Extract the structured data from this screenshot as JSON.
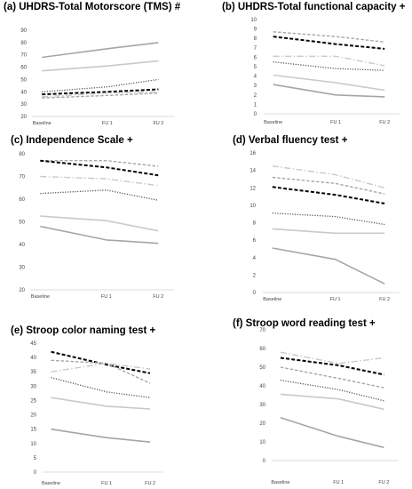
{
  "line_styles": {
    "s1": {
      "color": "#a6a6a6",
      "dash": "",
      "width": 1.6
    },
    "s2": {
      "color": "#c9c9c9",
      "dash": "",
      "width": 1.6
    },
    "s3": {
      "color": "#555555",
      "dash": "1.2,1.6",
      "width": 1.3
    },
    "s4": {
      "color": "#000000",
      "dash": "4,2.2",
      "width": 2.0
    },
    "s5": {
      "color": "#c9c9c9",
      "dash": "7,2.5,1.5,2.5",
      "width": 1.4
    },
    "s6": {
      "color": "#a6a6a6",
      "dash": "3.5,2",
      "width": 1.4
    }
  },
  "chart_data": [
    {
      "type": "line",
      "title": "(a) UHDRS-Total Motorscore (TMS) #",
      "categories": [
        "Baseline",
        "FU 1",
        "FU 2"
      ],
      "ylim": [
        20,
        90
      ],
      "yticks": [
        20,
        30,
        40,
        50,
        60,
        70,
        80,
        90
      ],
      "grid": false,
      "series": [
        {
          "style": "s1",
          "values": [
            68,
            75,
            80
          ]
        },
        {
          "style": "s2",
          "values": [
            57,
            61,
            65
          ]
        },
        {
          "style": "s3",
          "values": [
            40,
            44,
            50
          ]
        },
        {
          "style": "s4",
          "values": [
            38,
            40,
            42
          ]
        },
        {
          "style": "s5",
          "values": [
            36,
            39,
            40
          ]
        },
        {
          "style": "s6",
          "values": [
            35,
            37,
            39
          ]
        }
      ]
    },
    {
      "type": "line",
      "title": "(b) UHDRS-Total functional capacity +",
      "categories": [
        "Baseline",
        "FU 1",
        "FU 2"
      ],
      "ylim": [
        0,
        10
      ],
      "yticks": [
        0,
        1,
        2,
        3,
        4,
        5,
        6,
        7,
        8,
        9,
        10
      ],
      "grid": false,
      "series": [
        {
          "style": "s6",
          "values": [
            8.7,
            8.2,
            7.6
          ]
        },
        {
          "style": "s4",
          "values": [
            8.2,
            7.4,
            6.9
          ]
        },
        {
          "style": "s5",
          "values": [
            6.1,
            6.1,
            5.1
          ]
        },
        {
          "style": "s3",
          "values": [
            5.5,
            4.8,
            4.6
          ]
        },
        {
          "style": "s2",
          "values": [
            4.1,
            3.3,
            2.5
          ]
        },
        {
          "style": "s1",
          "values": [
            3.1,
            2.0,
            1.8
          ]
        }
      ]
    },
    {
      "type": "line",
      "title": "(c) Independence Scale +",
      "categories": [
        "Baseline",
        "FU 1",
        "FU 2"
      ],
      "ylim": [
        20,
        80
      ],
      "yticks": [
        20,
        30,
        40,
        50,
        60,
        70,
        80
      ],
      "grid": false,
      "series": [
        {
          "style": "s6",
          "values": [
            77,
            77,
            74.5
          ]
        },
        {
          "style": "s4",
          "values": [
            77,
            74,
            70.5
          ]
        },
        {
          "style": "s5",
          "values": [
            70,
            69,
            66
          ]
        },
        {
          "style": "s3",
          "values": [
            62.5,
            64,
            59.5
          ]
        },
        {
          "style": "s2",
          "values": [
            52.5,
            50.5,
            46
          ]
        },
        {
          "style": "s1",
          "values": [
            48,
            42,
            40.5
          ]
        }
      ]
    },
    {
      "type": "line",
      "title": "(d) Verbal fluency test +",
      "categories": [
        "Baseline",
        "FU 1",
        "FU 2"
      ],
      "ylim": [
        0,
        16
      ],
      "yticks": [
        0,
        2,
        4,
        6,
        8,
        10,
        12,
        14,
        16
      ],
      "grid": false,
      "series": [
        {
          "style": "s5",
          "values": [
            14.5,
            13.5,
            12
          ]
        },
        {
          "style": "s6",
          "values": [
            13.2,
            12.5,
            11.3
          ]
        },
        {
          "style": "s4",
          "values": [
            12.1,
            11.2,
            10.2
          ]
        },
        {
          "style": "s3",
          "values": [
            9.1,
            8.7,
            7.8
          ]
        },
        {
          "style": "s2",
          "values": [
            7.3,
            6.8,
            6.8
          ]
        },
        {
          "style": "s1",
          "values": [
            5.1,
            3.8,
            1.0
          ]
        }
      ]
    },
    {
      "type": "line",
      "title": "(e) Stroop color naming test +",
      "categories": [
        "Baseline",
        "FU 1",
        "FU 2"
      ],
      "ylim": [
        0,
        45
      ],
      "yticks": [
        0,
        5,
        10,
        15,
        20,
        25,
        30,
        35,
        40,
        45
      ],
      "grid": false,
      "series": [
        {
          "style": "s4",
          "values": [
            42,
            37.5,
            34.5
          ]
        },
        {
          "style": "s6",
          "values": [
            39,
            38,
            31
          ]
        },
        {
          "style": "s5",
          "values": [
            35,
            38,
            36
          ]
        },
        {
          "style": "s3",
          "values": [
            33,
            28,
            26
          ]
        },
        {
          "style": "s2",
          "values": [
            26,
            23,
            22
          ]
        },
        {
          "style": "s1",
          "values": [
            15,
            12,
            10.5
          ]
        }
      ]
    },
    {
      "type": "line",
      "title": "(f) Stroop word reading test +",
      "categories": [
        "Baseline",
        "FU 1",
        "FU 2"
      ],
      "ylim": [
        0,
        70
      ],
      "yticks": [
        0,
        10,
        20,
        30,
        40,
        50,
        60,
        70
      ],
      "grid": false,
      "series": [
        {
          "style": "s5",
          "values": [
            58,
            52,
            55
          ]
        },
        {
          "style": "s4",
          "values": [
            55,
            51,
            46
          ]
        },
        {
          "style": "s6",
          "values": [
            50,
            44,
            39
          ]
        },
        {
          "style": "s3",
          "values": [
            43,
            38,
            32
          ]
        },
        {
          "style": "s2",
          "values": [
            35.5,
            33,
            27.5
          ]
        },
        {
          "style": "s1",
          "values": [
            23,
            13,
            7
          ]
        }
      ]
    }
  ]
}
